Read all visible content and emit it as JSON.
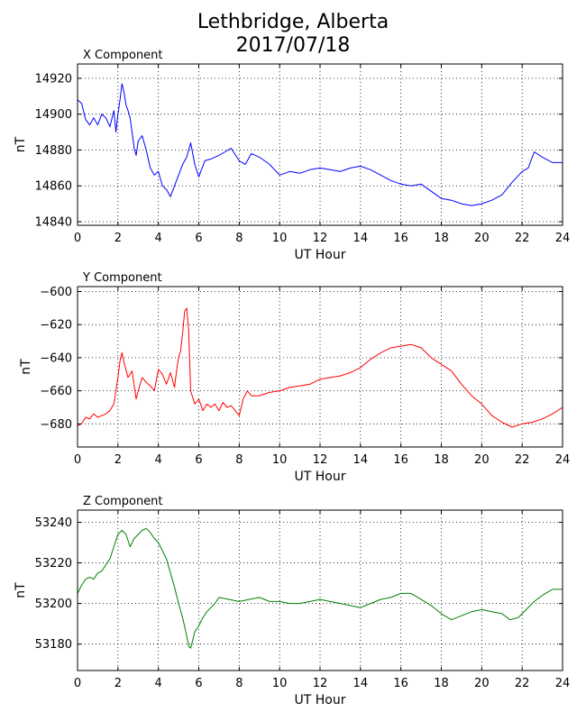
{
  "figure": {
    "title_line1": "Lethbridge, Alberta",
    "title_line2": "2017/07/18"
  },
  "chart_data": [
    {
      "type": "line",
      "title": "X Component",
      "xlabel": "UT Hour",
      "ylabel": "nT",
      "xlim": [
        0,
        24
      ],
      "ylim": [
        14838,
        14928
      ],
      "xticks": [
        0,
        2,
        4,
        6,
        8,
        10,
        12,
        14,
        16,
        18,
        20,
        22,
        24
      ],
      "yticks": [
        14840,
        14860,
        14880,
        14900,
        14920
      ],
      "grid": true,
      "color": "#0000ff",
      "x": [
        0,
        0.2,
        0.4,
        0.6,
        0.8,
        1.0,
        1.2,
        1.4,
        1.6,
        1.8,
        1.9,
        2.0,
        2.1,
        2.2,
        2.3,
        2.4,
        2.5,
        2.6,
        2.7,
        2.8,
        2.9,
        3.0,
        3.2,
        3.4,
        3.6,
        3.8,
        4.0,
        4.2,
        4.4,
        4.6,
        4.8,
        5.0,
        5.2,
        5.4,
        5.6,
        5.8,
        6.0,
        6.3,
        6.6,
        7.0,
        7.3,
        7.6,
        8.0,
        8.3,
        8.6,
        9.0,
        9.5,
        10.0,
        10.5,
        11.0,
        11.5,
        12.0,
        12.5,
        13.0,
        13.5,
        14.0,
        14.5,
        15.0,
        15.5,
        16.0,
        16.5,
        17.0,
        17.5,
        18.0,
        18.5,
        19.0,
        19.5,
        20.0,
        20.5,
        21.0,
        21.5,
        22.0,
        22.3,
        22.6,
        23.0,
        23.5,
        24.0
      ],
      "y": [
        14908,
        14906,
        14897,
        14894,
        14898,
        14894,
        14900,
        14898,
        14893,
        14902,
        14890,
        14900,
        14908,
        14917,
        14912,
        14905,
        14902,
        14898,
        14890,
        14881,
        14877,
        14885,
        14888,
        14880,
        14870,
        14866,
        14868,
        14860,
        14858,
        14854,
        14860,
        14866,
        14872,
        14876,
        14884,
        14872,
        14865,
        14874,
        14875,
        14877,
        14879,
        14881,
        14874,
        14872,
        14878,
        14876,
        14872,
        14866,
        14868,
        14867,
        14869,
        14870,
        14869,
        14868,
        14870,
        14871,
        14869,
        14866,
        14863,
        14861,
        14860,
        14861,
        14857,
        14853,
        14852,
        14850,
        14849,
        14850,
        14852,
        14855,
        14862,
        14868,
        14870,
        14879,
        14876,
        14873,
        14873
      ]
    },
    {
      "type": "line",
      "title": "Y Component",
      "xlabel": "UT Hour",
      "ylabel": "nT",
      "xlim": [
        0,
        24
      ],
      "ylim": [
        -694,
        -597
      ],
      "xticks": [
        0,
        2,
        4,
        6,
        8,
        10,
        12,
        14,
        16,
        18,
        20,
        22,
        24
      ],
      "yticks": [
        -600,
        -620,
        -640,
        -660,
        -680
      ],
      "grid": true,
      "color": "#ff0000",
      "x": [
        0,
        0.2,
        0.4,
        0.6,
        0.8,
        1.0,
        1.2,
        1.4,
        1.6,
        1.8,
        1.9,
        2.0,
        2.1,
        2.2,
        2.3,
        2.5,
        2.7,
        2.9,
        3.0,
        3.2,
        3.4,
        3.6,
        3.8,
        4.0,
        4.2,
        4.4,
        4.6,
        4.8,
        4.9,
        5.0,
        5.1,
        5.2,
        5.3,
        5.4,
        5.5,
        5.6,
        5.8,
        6.0,
        6.2,
        6.4,
        6.6,
        6.8,
        7.0,
        7.2,
        7.4,
        7.6,
        7.8,
        8.0,
        8.2,
        8.4,
        8.6,
        9.0,
        9.5,
        10.0,
        10.5,
        11.0,
        11.5,
        12.0,
        12.5,
        13.0,
        13.5,
        14.0,
        14.5,
        15.0,
        15.5,
        16.0,
        16.5,
        17.0,
        17.5,
        18.0,
        18.5,
        19.0,
        19.5,
        20.0,
        20.5,
        21.0,
        21.5,
        22.0,
        22.5,
        23.0,
        23.5,
        24.0
      ],
      "y": [
        -681,
        -680,
        -676,
        -677,
        -674,
        -676,
        -675,
        -674,
        -672,
        -668,
        -660,
        -652,
        -642,
        -637,
        -643,
        -652,
        -648,
        -665,
        -660,
        -652,
        -655,
        -657,
        -660,
        -647,
        -650,
        -656,
        -649,
        -658,
        -648,
        -640,
        -636,
        -625,
        -612,
        -610,
        -624,
        -660,
        -668,
        -665,
        -672,
        -668,
        -670,
        -668,
        -672,
        -667,
        -670,
        -669,
        -672,
        -675,
        -665,
        -660,
        -663,
        -663,
        -661,
        -660,
        -658,
        -657,
        -656,
        -653,
        -652,
        -651,
        -649,
        -646,
        -641,
        -637,
        -634,
        -633,
        -632,
        -634,
        -640,
        -644,
        -648,
        -656,
        -663,
        -668,
        -675,
        -679,
        -682,
        -680,
        -679,
        -677,
        -674,
        -670
      ]
    },
    {
      "type": "line",
      "title": "Z Component",
      "xlabel": "UT Hour",
      "ylabel": "nT",
      "xlim": [
        0,
        24
      ],
      "ylim": [
        53167,
        53246
      ],
      "xticks": [
        0,
        2,
        4,
        6,
        8,
        10,
        12,
        14,
        16,
        18,
        20,
        22,
        24
      ],
      "yticks": [
        53240,
        53220,
        53200,
        53180
      ],
      "grid": true,
      "color": "#008000",
      "x": [
        0,
        0.2,
        0.4,
        0.6,
        0.8,
        1.0,
        1.2,
        1.4,
        1.6,
        1.8,
        2.0,
        2.2,
        2.4,
        2.6,
        2.8,
        3.0,
        3.2,
        3.4,
        3.6,
        3.8,
        4.0,
        4.2,
        4.4,
        4.6,
        4.8,
        5.0,
        5.2,
        5.4,
        5.5,
        5.6,
        5.7,
        5.8,
        6.0,
        6.2,
        6.4,
        6.6,
        6.8,
        7.0,
        7.5,
        8.0,
        8.5,
        9.0,
        9.5,
        10.0,
        10.5,
        11.0,
        11.5,
        12.0,
        12.5,
        13.0,
        13.5,
        14.0,
        14.5,
        15.0,
        15.5,
        16.0,
        16.5,
        17.0,
        17.5,
        18.0,
        18.5,
        19.0,
        19.5,
        20.0,
        20.5,
        21.0,
        21.4,
        21.8,
        22.2,
        22.6,
        23.0,
        23.5,
        24.0
      ],
      "y": [
        53205,
        53209,
        53212,
        53213,
        53212,
        53215,
        53216,
        53219,
        53222,
        53228,
        53234,
        53236,
        53234,
        53228,
        53232,
        53234,
        53236,
        53237,
        53235,
        53232,
        53230,
        53226,
        53222,
        53215,
        53208,
        53200,
        53193,
        53184,
        53179,
        53178,
        53182,
        53186,
        53189,
        53193,
        53196,
        53198,
        53200,
        53203,
        53202,
        53201,
        53202,
        53203,
        53201,
        53201,
        53200,
        53200,
        53201,
        53202,
        53201,
        53200,
        53199,
        53198,
        53200,
        53202,
        53203,
        53205,
        53205,
        53202,
        53199,
        53195,
        53192,
        53194,
        53196,
        53197,
        53196,
        53195,
        53192,
        53193,
        53197,
        53201,
        53204,
        53207,
        53207
      ]
    }
  ]
}
